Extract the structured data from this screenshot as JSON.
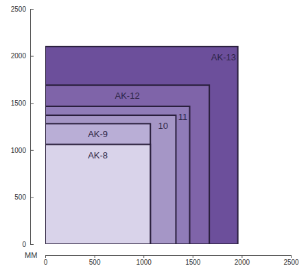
{
  "chart_data": {
    "type": "rectangle",
    "x_label": "MM",
    "series": [
      {
        "name": "AK-8",
        "color": "#d9d3ea",
        "x": 1070,
        "y": 1060
      },
      {
        "name": "AK-9",
        "color": "#b9aed6",
        "x": 1070,
        "y": 1280
      },
      {
        "name": "10",
        "color": "#a596c6",
        "x": 1330,
        "y": 1370
      },
      {
        "name": "11",
        "color": "#907cb8",
        "x": 1470,
        "y": 1465
      },
      {
        "name": "AK-12",
        "color": "#7f64a9",
        "x": 1670,
        "y": 1690
      },
      {
        "name": "AK-13",
        "color": "#6c4f9b",
        "x": 1960,
        "y": 2100
      }
    ],
    "xlim": [
      0,
      2500
    ],
    "xticks": [
      0,
      500,
      1000,
      1500,
      2000,
      2500
    ],
    "ylim": [
      0,
      2500
    ],
    "yticks": [
      0,
      500,
      1000,
      1500,
      2000,
      2500
    ]
  }
}
